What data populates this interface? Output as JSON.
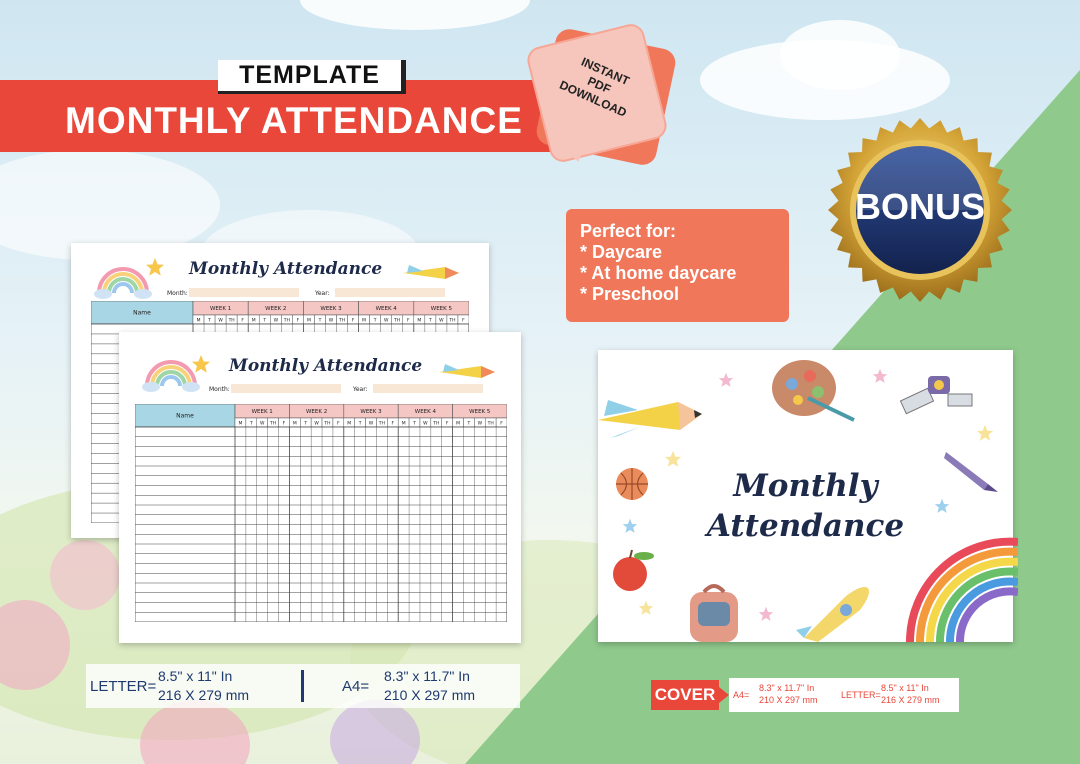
{
  "banner": {
    "tag": "TEMPLATE",
    "title": "MONTHLY ATTENDANCE"
  },
  "pdf_badge": {
    "lines": [
      "INSTANT",
      "PDF",
      "DOWNLOAD"
    ]
  },
  "bonus": {
    "label": "BONUS"
  },
  "perfect_for": {
    "heading": "Perfect for:",
    "items": [
      "* Daycare",
      "* At home daycare",
      "* Preschool"
    ]
  },
  "sheet": {
    "title": "Monthly Attendance",
    "month_label": "Month:",
    "year_label": "Year:",
    "name_header": "Name",
    "weeks": [
      "WEEK 1",
      "WEEK 2",
      "WEEK 3",
      "WEEK 4",
      "WEEK 5"
    ],
    "days": [
      "M",
      "T",
      "W",
      "TH",
      "F"
    ]
  },
  "cover": {
    "title_line1": "Monthly",
    "title_line2": "Attendance"
  },
  "sizes": {
    "letter_label": "LETTER=",
    "letter_in": "8.5\" x 11\" In",
    "letter_mm": "216 X 279 mm",
    "a4_label": "A4=",
    "a4_in": "8.3\" x 11.7\" In",
    "a4_mm": "210 X 297 mm"
  },
  "cover_sizes": {
    "tag": "COVER",
    "a4_label": "A4=",
    "a4_in": "8.3\" x 11.7\" In",
    "a4_mm": "210 X 297 mm",
    "letter_label": "LETTER=",
    "letter_in": "8.5\" x 11\" In",
    "letter_mm": "216 X 279 mm"
  },
  "colors": {
    "accent_red": "#e8473a",
    "accent_orange": "#f0775a",
    "navy": "#1e2a4a",
    "green": "#8fc98c",
    "gold": "#d4a437"
  },
  "icons": [
    "rainbow-icon",
    "star-icon",
    "pencil-rocket-icon",
    "paint-palette-icon",
    "satellite-icon",
    "basketball-icon",
    "crayon-icon",
    "apple-icon",
    "backpack-icon",
    "rocket-icon"
  ]
}
